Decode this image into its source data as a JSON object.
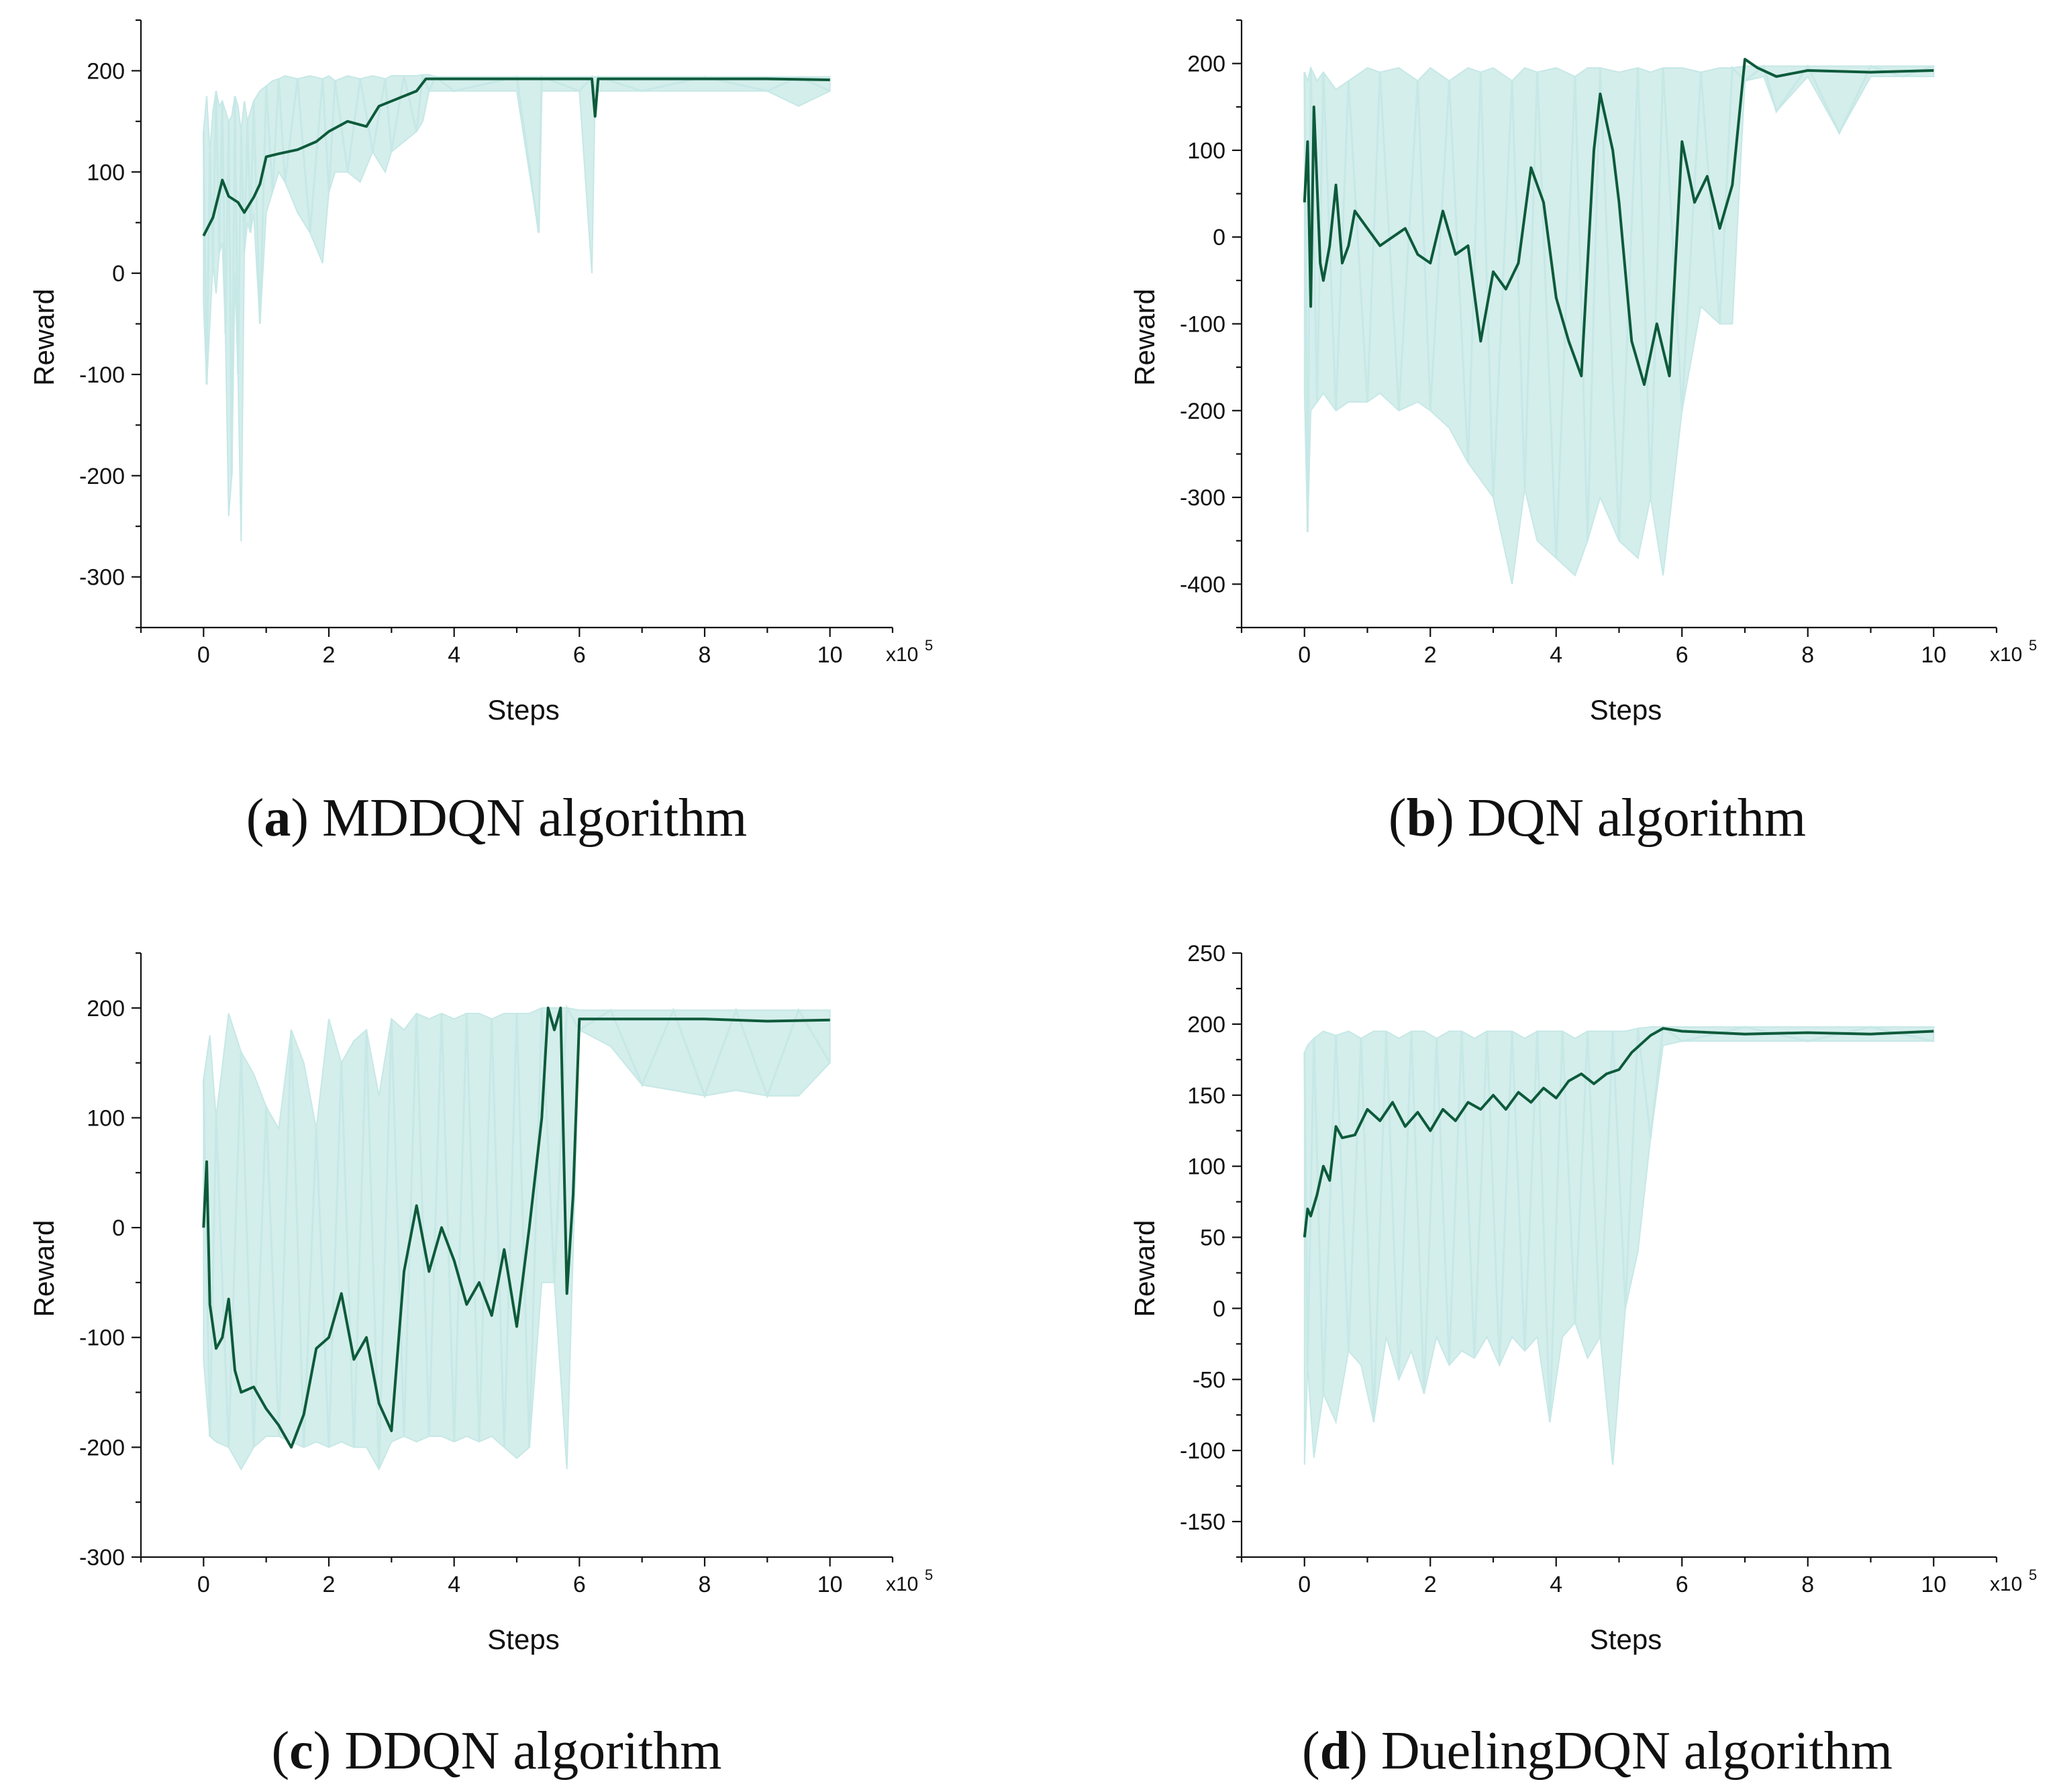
{
  "colors": {
    "raw": "#c6e8e6",
    "smoothed": "#0d5a3a",
    "axis": "#111111"
  },
  "chart_data": [
    {
      "type": "line",
      "panel_letter": "a",
      "caption_rest": " MDDQN algorithm",
      "xlabel": "Steps",
      "ylabel": "Reward",
      "x_multiplier_base": "x10",
      "x_multiplier_exp": "5",
      "xlim": [
        -1,
        11
      ],
      "ylim": [
        -350,
        250
      ],
      "xticks": [
        0,
        2,
        4,
        6,
        8,
        10
      ],
      "yticks": [
        -300,
        -200,
        -100,
        0,
        100,
        200
      ],
      "series": [
        {
          "kind": "smoothed",
          "x": [
            0,
            0.15,
            0.3,
            0.4,
            0.55,
            0.65,
            0.8,
            0.9,
            1.0,
            1.2,
            1.5,
            1.8,
            2.0,
            2.3,
            2.6,
            2.8,
            3.0,
            3.2,
            3.4,
            3.55,
            3.65,
            3.7,
            4.0,
            5.0,
            6.0,
            6.2,
            6.25,
            6.3,
            7.0,
            8.0,
            9.0,
            10.0
          ],
          "y": [
            37,
            55,
            92,
            76,
            70,
            60,
            75,
            88,
            115,
            118,
            122,
            130,
            140,
            150,
            145,
            165,
            170,
            175,
            180,
            192,
            192,
            192,
            192,
            192,
            192,
            192,
            155,
            192,
            192,
            192,
            192,
            191
          ]
        },
        {
          "kind": "raw",
          "x": [
            0,
            0.05,
            0.1,
            0.15,
            0.2,
            0.25,
            0.3,
            0.35,
            0.4,
            0.45,
            0.5,
            0.55,
            0.6,
            0.65,
            0.7,
            0.75,
            0.8,
            0.9,
            1.0,
            1.1,
            1.2,
            1.3,
            1.5,
            1.7,
            1.9,
            2.0,
            2.1,
            2.3,
            2.5,
            2.7,
            2.9,
            3.0,
            3.2,
            3.4,
            3.5,
            3.6,
            3.7,
            4.0,
            5.0,
            5.35,
            5.4,
            6.0,
            6.2,
            6.25,
            6.3,
            7.0,
            8.0,
            9.0,
            9.5,
            10.0
          ],
          "upper": [
            140,
            175,
            120,
            160,
            180,
            165,
            170,
            160,
            150,
            155,
            175,
            165,
            140,
            170,
            150,
            160,
            170,
            180,
            185,
            190,
            192,
            195,
            192,
            195,
            192,
            195,
            190,
            195,
            192,
            195,
            192,
            195,
            195,
            195,
            196,
            196,
            194,
            194,
            194,
            194,
            194,
            194,
            194,
            194,
            194,
            194,
            194,
            194,
            194,
            194
          ],
          "lower": [
            -30,
            -110,
            -50,
            10,
            -20,
            20,
            30,
            -60,
            -240,
            -200,
            0,
            -100,
            -265,
            20,
            50,
            40,
            60,
            -50,
            60,
            80,
            100,
            90,
            60,
            40,
            10,
            80,
            100,
            100,
            90,
            120,
            100,
            120,
            130,
            140,
            150,
            180,
            180,
            180,
            180,
            40,
            180,
            180,
            0,
            180,
            180,
            180,
            180,
            180,
            165,
            180
          ]
        }
      ]
    },
    {
      "type": "line",
      "panel_letter": "b",
      "caption_rest": " DQN algorithm",
      "xlabel": "Steps",
      "ylabel": "Reward",
      "x_multiplier_base": "x10",
      "x_multiplier_exp": "5",
      "xlim": [
        -1,
        11
      ],
      "ylim": [
        -450,
        250
      ],
      "xticks": [
        0,
        2,
        4,
        6,
        8,
        10
      ],
      "yticks": [
        -400,
        -300,
        -200,
        -100,
        0,
        100,
        200
      ],
      "series": [
        {
          "kind": "smoothed",
          "x": [
            0,
            0.05,
            0.1,
            0.15,
            0.2,
            0.25,
            0.3,
            0.4,
            0.5,
            0.6,
            0.7,
            0.8,
            1.0,
            1.2,
            1.4,
            1.6,
            1.8,
            2.0,
            2.2,
            2.4,
            2.6,
            2.8,
            3.0,
            3.2,
            3.4,
            3.6,
            3.8,
            4.0,
            4.2,
            4.4,
            4.6,
            4.7,
            4.9,
            5.0,
            5.2,
            5.4,
            5.6,
            5.8,
            6.0,
            6.2,
            6.4,
            6.6,
            6.8,
            7.0,
            7.2,
            7.5,
            8.0,
            9.0,
            10.0
          ],
          "y": [
            40,
            110,
            -80,
            150,
            60,
            -30,
            -50,
            -10,
            60,
            -30,
            -10,
            30,
            10,
            -10,
            0,
            10,
            -20,
            -30,
            30,
            -20,
            -10,
            -120,
            -40,
            -60,
            -30,
            80,
            40,
            -70,
            -120,
            -160,
            100,
            165,
            100,
            40,
            -120,
            -170,
            -100,
            -160,
            110,
            40,
            70,
            10,
            60,
            205,
            195,
            185,
            192,
            190,
            192
          ]
        },
        {
          "kind": "raw",
          "x": [
            0,
            0.05,
            0.1,
            0.2,
            0.3,
            0.5,
            0.7,
            1.0,
            1.2,
            1.5,
            1.8,
            2.0,
            2.3,
            2.6,
            2.8,
            3.0,
            3.3,
            3.5,
            3.7,
            4.0,
            4.3,
            4.5,
            4.7,
            5.0,
            5.3,
            5.5,
            5.7,
            6.0,
            6.3,
            6.6,
            6.8,
            7.0,
            7.3,
            7.5,
            8.0,
            8.5,
            9.0,
            9.5,
            10.0
          ],
          "upper": [
            190,
            180,
            195,
            180,
            190,
            170,
            180,
            195,
            190,
            195,
            180,
            195,
            180,
            195,
            190,
            195,
            180,
            195,
            190,
            195,
            185,
            195,
            195,
            190,
            195,
            190,
            195,
            195,
            190,
            195,
            195,
            197,
            197,
            197,
            197,
            197,
            197,
            197,
            197
          ],
          "lower": [
            -180,
            -340,
            -200,
            -190,
            -180,
            -200,
            -190,
            -190,
            -180,
            -200,
            -190,
            -200,
            -220,
            -260,
            -280,
            -300,
            -400,
            -290,
            -350,
            -370,
            -390,
            -350,
            -300,
            -350,
            -370,
            -300,
            -390,
            -200,
            -80,
            -100,
            -100,
            180,
            185,
            145,
            185,
            120,
            185,
            185,
            185
          ]
        }
      ]
    },
    {
      "type": "line",
      "panel_letter": "c",
      "caption_rest": " DDQN algorithm",
      "xlabel": "Steps",
      "ylabel": "Reward",
      "x_multiplier_base": "x10",
      "x_multiplier_exp": "5",
      "xlim": [
        -1,
        11
      ],
      "ylim": [
        -300,
        250
      ],
      "xticks": [
        0,
        2,
        4,
        6,
        8,
        10
      ],
      "yticks": [
        -300,
        -200,
        -100,
        0,
        100,
        200
      ],
      "series": [
        {
          "kind": "smoothed",
          "x": [
            0,
            0.05,
            0.1,
            0.2,
            0.3,
            0.4,
            0.5,
            0.6,
            0.8,
            1.0,
            1.2,
            1.4,
            1.6,
            1.8,
            2.0,
            2.2,
            2.4,
            2.6,
            2.8,
            3.0,
            3.2,
            3.4,
            3.6,
            3.8,
            4.0,
            4.2,
            4.4,
            4.6,
            4.8,
            5.0,
            5.2,
            5.4,
            5.5,
            5.6,
            5.7,
            5.8,
            5.9,
            6.0,
            6.5,
            7.0,
            8.0,
            9.0,
            10.0
          ],
          "y": [
            0,
            60,
            -70,
            -110,
            -100,
            -65,
            -130,
            -150,
            -145,
            -165,
            -180,
            -200,
            -170,
            -110,
            -100,
            -60,
            -120,
            -100,
            -160,
            -185,
            -40,
            20,
            -40,
            0,
            -30,
            -70,
            -50,
            -80,
            -20,
            -90,
            0,
            100,
            200,
            180,
            200,
            -60,
            30,
            190,
            190,
            190,
            190,
            188,
            189
          ]
        },
        {
          "kind": "raw",
          "x": [
            0,
            0.1,
            0.2,
            0.4,
            0.6,
            0.8,
            1.0,
            1.2,
            1.4,
            1.6,
            1.8,
            2.0,
            2.2,
            2.4,
            2.6,
            2.8,
            3.0,
            3.2,
            3.4,
            3.6,
            3.8,
            4.0,
            4.2,
            4.4,
            4.6,
            4.8,
            5.0,
            5.2,
            5.4,
            5.6,
            5.8,
            6.0,
            6.5,
            7.0,
            7.5,
            8.0,
            8.5,
            9.0,
            9.5,
            10.0
          ],
          "upper": [
            135,
            175,
            100,
            195,
            160,
            140,
            110,
            90,
            180,
            150,
            90,
            190,
            150,
            170,
            180,
            120,
            190,
            180,
            195,
            190,
            195,
            190,
            195,
            195,
            190,
            195,
            195,
            195,
            200,
            200,
            200,
            198,
            198,
            198,
            198,
            198,
            198,
            198,
            198,
            198
          ],
          "lower": [
            -120,
            -190,
            -195,
            -200,
            -220,
            -200,
            -190,
            -190,
            -195,
            -200,
            -195,
            -200,
            -195,
            -200,
            -200,
            -220,
            -195,
            -190,
            -195,
            -190,
            -190,
            -195,
            -190,
            -195,
            -190,
            -200,
            -210,
            -200,
            -50,
            -50,
            -220,
            180,
            165,
            130,
            125,
            120,
            125,
            120,
            120,
            150
          ]
        }
      ]
    },
    {
      "type": "line",
      "panel_letter": "d",
      "caption_rest": " DuelingDQN algorithm",
      "xlabel": "Steps",
      "ylabel": "Reward",
      "x_multiplier_base": "x10",
      "x_multiplier_exp": "5",
      "xlim": [
        -1,
        11
      ],
      "ylim": [
        -175,
        250
      ],
      "xticks": [
        0,
        2,
        4,
        6,
        8,
        10
      ],
      "yticks": [
        -150,
        -100,
        -50,
        0,
        50,
        100,
        150,
        200,
        250
      ],
      "series": [
        {
          "kind": "smoothed",
          "x": [
            0,
            0.05,
            0.1,
            0.2,
            0.3,
            0.4,
            0.5,
            0.6,
            0.8,
            1.0,
            1.2,
            1.4,
            1.6,
            1.8,
            2.0,
            2.2,
            2.4,
            2.6,
            2.8,
            3.0,
            3.2,
            3.4,
            3.6,
            3.8,
            4.0,
            4.2,
            4.4,
            4.6,
            4.8,
            5.0,
            5.2,
            5.5,
            5.7,
            6.0,
            7.0,
            8.0,
            9.0,
            10.0
          ],
          "y": [
            50,
            70,
            65,
            80,
            100,
            90,
            128,
            120,
            122,
            140,
            132,
            145,
            128,
            138,
            125,
            140,
            132,
            145,
            140,
            150,
            140,
            152,
            145,
            155,
            148,
            160,
            165,
            158,
            165,
            168,
            180,
            192,
            197,
            195,
            193,
            194,
            193,
            195
          ]
        },
        {
          "kind": "raw",
          "x": [
            0,
            0.05,
            0.15,
            0.3,
            0.5,
            0.7,
            0.9,
            1.1,
            1.3,
            1.5,
            1.7,
            1.9,
            2.1,
            2.3,
            2.5,
            2.7,
            2.9,
            3.1,
            3.3,
            3.5,
            3.7,
            3.9,
            4.1,
            4.3,
            4.5,
            4.7,
            4.9,
            5.1,
            5.3,
            5.5,
            5.7,
            6.0,
            7.0,
            8.0,
            9.0,
            10.0
          ],
          "upper": [
            180,
            185,
            190,
            195,
            192,
            195,
            190,
            195,
            195,
            190,
            195,
            195,
            190,
            195,
            195,
            190,
            195,
            195,
            195,
            190,
            195,
            195,
            195,
            190,
            195,
            195,
            195,
            195,
            197,
            198,
            198,
            198,
            198,
            198,
            198,
            198
          ],
          "lower": [
            -110,
            -40,
            -105,
            -60,
            -80,
            -30,
            -40,
            -80,
            -20,
            -50,
            -30,
            -60,
            -20,
            -40,
            -30,
            -35,
            -20,
            -40,
            -20,
            -30,
            -20,
            -80,
            -20,
            -10,
            -35,
            -20,
            -110,
            0,
            40,
            120,
            185,
            188,
            188,
            188,
            188,
            188
          ]
        }
      ]
    }
  ]
}
